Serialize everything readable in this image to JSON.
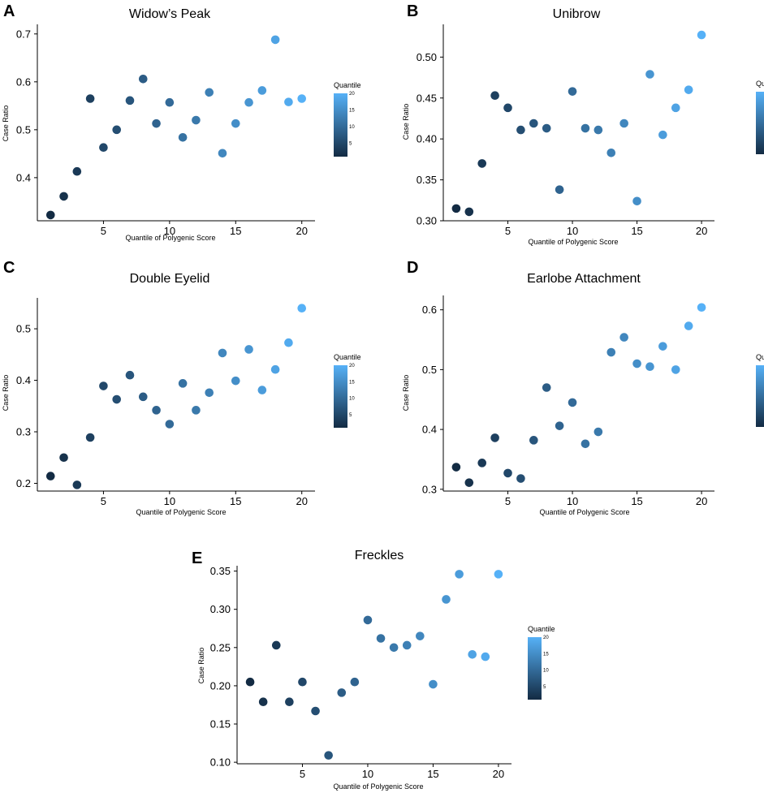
{
  "color_scale": {
    "low": "#132b43",
    "high": "#56b1f7"
  },
  "colorbar": {
    "title": "Quantile",
    "ticks": [
      "5",
      "10",
      "15",
      "20"
    ],
    "tick_values": [
      5,
      10,
      15,
      20
    ],
    "range": [
      1,
      20
    ]
  },
  "chart_data": [
    {
      "id": "A",
      "type": "scatter",
      "title": "Widow’s Peak",
      "xlabel": "Quantile of Polygenic Score",
      "ylabel": "Case Ratio",
      "x": [
        1,
        2,
        3,
        4,
        5,
        6,
        7,
        8,
        9,
        10,
        11,
        12,
        13,
        14,
        15,
        16,
        17,
        18,
        19,
        20
      ],
      "y": [
        0.322,
        0.361,
        0.413,
        0.565,
        0.463,
        0.5,
        0.561,
        0.606,
        0.513,
        0.557,
        0.484,
        0.52,
        0.578,
        0.451,
        0.513,
        0.557,
        0.582,
        0.688,
        0.558,
        0.565
      ],
      "xlim": [
        0,
        21
      ],
      "ylim": [
        0.31,
        0.72
      ],
      "xticks": [
        5,
        10,
        15,
        20
      ],
      "xtick_labels": [
        "5",
        "10",
        "15",
        "20"
      ],
      "yticks": [
        0.4,
        0.5,
        0.6,
        0.7
      ],
      "ytick_labels": [
        "0.4",
        "0.5",
        "0.6",
        "0.7"
      ]
    },
    {
      "id": "B",
      "type": "scatter",
      "title": "Unibrow",
      "xlabel": "Quantile of Polygenic Score",
      "ylabel": "Case Ratio",
      "x": [
        1,
        2,
        3,
        4,
        5,
        6,
        7,
        8,
        9,
        10,
        11,
        12,
        13,
        14,
        15,
        16,
        17,
        18,
        19,
        20
      ],
      "y": [
        0.315,
        0.311,
        0.37,
        0.453,
        0.438,
        0.411,
        0.419,
        0.413,
        0.338,
        0.458,
        0.413,
        0.411,
        0.383,
        0.419,
        0.324,
        0.479,
        0.405,
        0.438,
        0.46,
        0.527
      ],
      "xlim": [
        0,
        21
      ],
      "ylim": [
        0.3,
        0.54
      ],
      "xticks": [
        5,
        10,
        15,
        20
      ],
      "xtick_labels": [
        "5",
        "10",
        "15",
        "20"
      ],
      "yticks": [
        0.3,
        0.35,
        0.4,
        0.45,
        0.5
      ],
      "ytick_labels": [
        "0.30",
        "0.35",
        "0.40",
        "0.45",
        "0.50"
      ]
    },
    {
      "id": "C",
      "type": "scatter",
      "title": "Double Eyelid",
      "xlabel": "Quantile of Polygenic Score",
      "ylabel": "Case Ratio",
      "x": [
        1,
        2,
        3,
        4,
        5,
        6,
        7,
        8,
        9,
        10,
        11,
        12,
        13,
        14,
        15,
        16,
        17,
        18,
        19,
        20
      ],
      "y": [
        0.214,
        0.25,
        0.197,
        0.289,
        0.389,
        0.363,
        0.41,
        0.368,
        0.342,
        0.315,
        0.394,
        0.342,
        0.376,
        0.453,
        0.399,
        0.46,
        0.381,
        0.421,
        0.473,
        0.54
      ],
      "xlim": [
        0,
        21
      ],
      "ylim": [
        0.185,
        0.56
      ],
      "xticks": [
        5,
        10,
        15,
        20
      ],
      "xtick_labels": [
        "5",
        "10",
        "15",
        "20"
      ],
      "yticks": [
        0.2,
        0.3,
        0.4,
        0.5
      ],
      "ytick_labels": [
        "0.2",
        "0.3",
        "0.4",
        "0.5"
      ]
    },
    {
      "id": "D",
      "type": "scatter",
      "title": "Earlobe Attachment",
      "xlabel": "Quantile of Polygenic Score",
      "ylabel": "Case Ratio",
      "x": [
        1,
        2,
        3,
        4,
        5,
        6,
        7,
        8,
        9,
        10,
        11,
        12,
        13,
        14,
        15,
        16,
        17,
        18,
        19,
        20
      ],
      "y": [
        0.337,
        0.311,
        0.344,
        0.386,
        0.327,
        0.318,
        0.382,
        0.47,
        0.406,
        0.445,
        0.376,
        0.396,
        0.529,
        0.554,
        0.51,
        0.505,
        0.539,
        0.5,
        0.573,
        0.604
      ],
      "xlim": [
        0,
        21
      ],
      "ylim": [
        0.297,
        0.624
      ],
      "xticks": [
        5,
        10,
        15,
        20
      ],
      "xtick_labels": [
        "5",
        "10",
        "15",
        "20"
      ],
      "yticks": [
        0.3,
        0.4,
        0.5,
        0.6
      ],
      "ytick_labels": [
        "0.3",
        "0.4",
        "0.5",
        "0.6"
      ]
    },
    {
      "id": "E",
      "type": "scatter",
      "title": "Freckles",
      "xlabel": "Quantile of Polygenic Score",
      "ylabel": "Case Ratio",
      "x": [
        1,
        2,
        3,
        4,
        5,
        6,
        7,
        8,
        9,
        10,
        11,
        12,
        13,
        14,
        15,
        16,
        17,
        18,
        19,
        20
      ],
      "y": [
        0.205,
        0.179,
        0.253,
        0.179,
        0.205,
        0.167,
        0.109,
        0.191,
        0.205,
        0.286,
        0.262,
        0.25,
        0.253,
        0.265,
        0.202,
        0.313,
        0.346,
        0.241,
        0.238,
        0.346
      ],
      "xlim": [
        0,
        21
      ],
      "ylim": [
        0.098,
        0.357
      ],
      "xticks": [
        5,
        10,
        15,
        20
      ],
      "xtick_labels": [
        "5",
        "10",
        "15",
        "20"
      ],
      "yticks": [
        0.1,
        0.15,
        0.2,
        0.25,
        0.3,
        0.35
      ],
      "ytick_labels": [
        "0.10",
        "0.15",
        "0.20",
        "0.25",
        "0.30",
        "0.35"
      ]
    }
  ]
}
